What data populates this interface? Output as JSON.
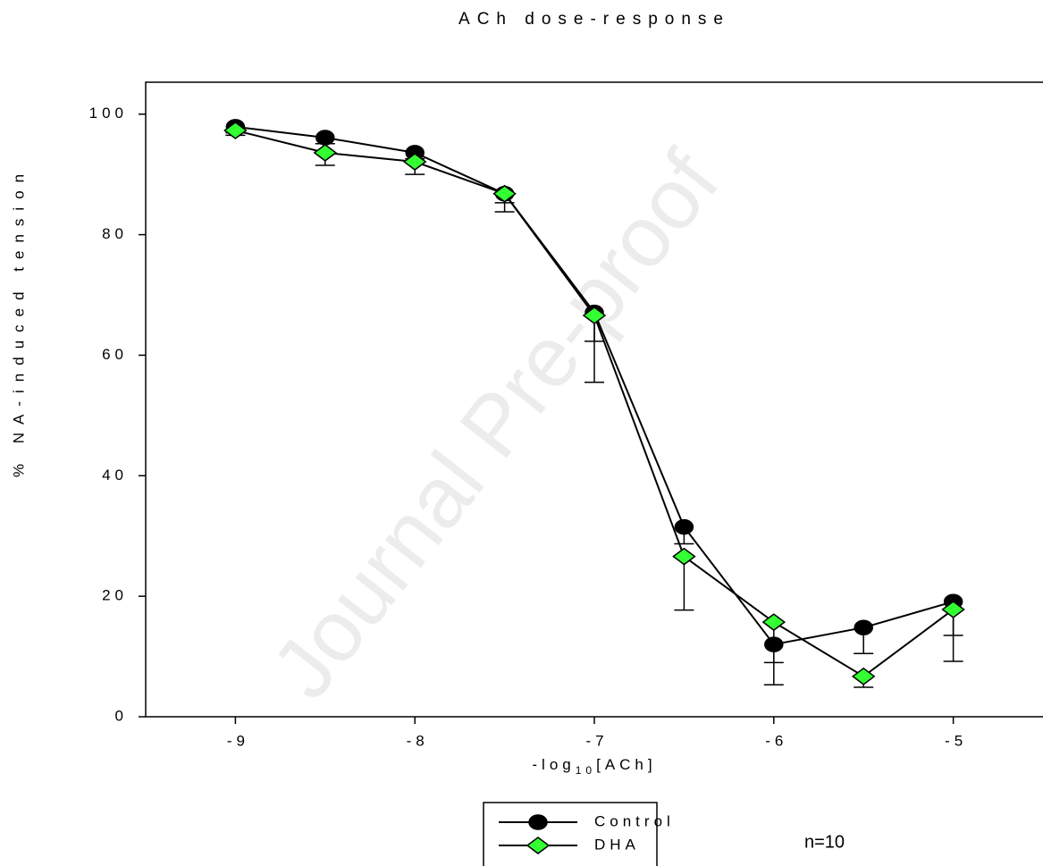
{
  "chart_data": {
    "type": "line",
    "title": "ACh dose-response",
    "x_label": "-log",
    "x_label_sub": "10",
    "x_label_end": "[ACh]",
    "y_label": "% NA-induced tension",
    "x": [
      -9,
      -8.5,
      -8,
      -7.5,
      -7,
      -6.5,
      -6,
      -5.5,
      -5
    ],
    "series": [
      {
        "name": "Control",
        "color": "#000000",
        "marker": "circle",
        "values": [
          97.9,
          96.1,
          93.6,
          86.8,
          67.1,
          31.5,
          12.0,
          14.8,
          19.1
        ],
        "errors": [
          1,
          1,
          1,
          1.5,
          4.8,
          2.8,
          3,
          4.3,
          5.6
        ]
      },
      {
        "name": "DHA",
        "color": "#33ff33",
        "marker": "diamond",
        "values": [
          97.3,
          93.6,
          92.1,
          86.8,
          66.6,
          26.6,
          15.7,
          6.7,
          17.8
        ],
        "errors": [
          0.8,
          2.1,
          2.1,
          3,
          11.1,
          8.9,
          10.4,
          1.8,
          8.6
        ]
      }
    ],
    "xlim": [
      -9.5,
      -4.5
    ],
    "xticks": [
      -9,
      -8,
      -7,
      -6,
      -5
    ],
    "ylim": [
      0,
      105.3
    ],
    "yticks": [
      0,
      20,
      40,
      60,
      80,
      100
    ],
    "annotation": "n=10",
    "watermark": "Journal Pre-proof"
  }
}
